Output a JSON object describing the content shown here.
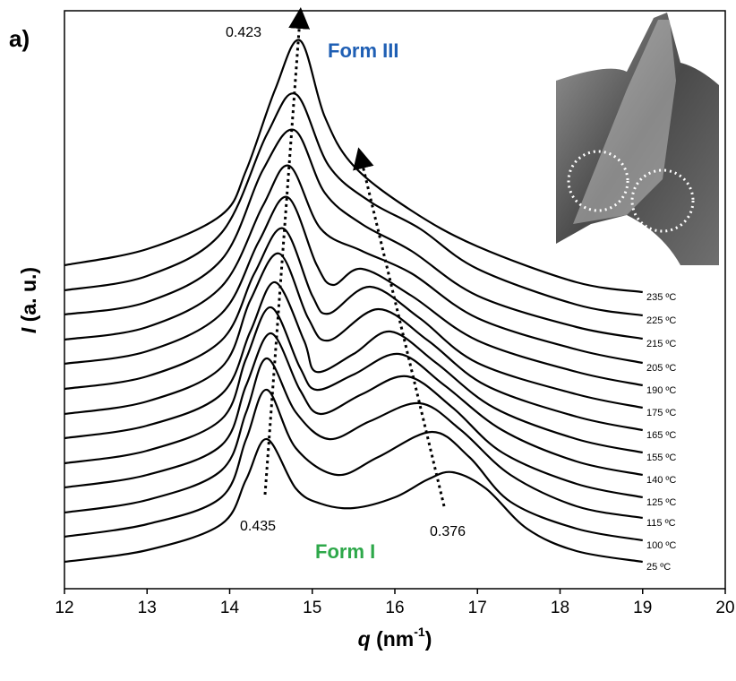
{
  "chart_data": {
    "type": "line",
    "panel_label": "a)",
    "x_label_symbol": "q",
    "x_label_unit": "(nm",
    "x_label_exp": "-1",
    "x_label_close": ")",
    "y_label_symbol": "I",
    "y_label_unit": "(a. u.)",
    "xlim": [
      12,
      20
    ],
    "xticks": [
      12,
      13,
      14,
      15,
      16,
      17,
      18,
      19,
      20
    ],
    "ylim": [
      0,
      645
    ],
    "annotations": [
      "0.423",
      "0.435",
      "0.376"
    ],
    "form_labels": [
      {
        "text": "Form III",
        "color": "#1f5fb4"
      },
      {
        "text": "Form I",
        "color": "#2ea84a"
      }
    ],
    "series": [
      {
        "name": "25 ºC",
        "color": "#000000",
        "x": [
          12,
          13,
          13.9,
          14.2,
          14.45,
          14.8,
          15.1,
          15.5,
          16.0,
          16.4,
          16.7,
          17.1,
          17.6,
          18.2,
          19
        ],
        "values": [
          30,
          43,
          72,
          122,
          167,
          112,
          95,
          90,
          102,
          122,
          130,
          112,
          67,
          42,
          30
        ]
      },
      {
        "name": "100 ºC",
        "color": "#000000",
        "x": [
          12,
          13,
          13.9,
          14.2,
          14.45,
          14.8,
          15.3,
          15.8,
          16.45,
          16.9,
          17.4,
          18.2,
          19
        ],
        "values": [
          58,
          72,
          102,
          167,
          222,
          157,
          127,
          147,
          175,
          147,
          97,
          67,
          54
        ]
      },
      {
        "name": "115 ºC",
        "color": "#000000",
        "x": [
          12,
          13,
          13.9,
          14.2,
          14.45,
          14.8,
          15.2,
          15.7,
          16.3,
          16.8,
          17.4,
          18.2,
          19
        ],
        "values": [
          85,
          99,
          132,
          197,
          257,
          197,
          167,
          187,
          207,
          177,
          127,
          92,
          79
        ]
      },
      {
        "name": "125 ºC",
        "color": "#000000",
        "x": [
          12,
          13,
          13.9,
          14.2,
          14.5,
          14.85,
          15.1,
          15.6,
          16.15,
          16.7,
          17.3,
          18.2,
          19
        ],
        "values": [
          113,
          127,
          160,
          227,
          285,
          222,
          195,
          217,
          237,
          202,
          152,
          117,
          102
        ]
      },
      {
        "name": "140 ºC",
        "color": "#000000",
        "x": [
          12,
          13,
          13.9,
          14.2,
          14.5,
          14.85,
          15.05,
          15.5,
          16.05,
          16.6,
          17.3,
          18.2,
          19
        ],
        "values": [
          140,
          154,
          189,
          257,
          314,
          247,
          222,
          239,
          262,
          227,
          177,
          142,
          127
        ]
      },
      {
        "name": "155 ºC",
        "color": "#000000",
        "x": [
          12,
          13,
          13.9,
          14.25,
          14.55,
          14.9,
          15.05,
          15.5,
          15.95,
          16.5,
          17.2,
          18.2,
          19
        ],
        "values": [
          168,
          182,
          217,
          287,
          342,
          277,
          242,
          262,
          287,
          252,
          202,
          167,
          152
        ]
      },
      {
        "name": "165 ºC",
        "color": "#000000",
        "x": [
          12,
          13,
          13.9,
          14.25,
          14.6,
          14.95,
          15.2,
          15.8,
          16.4,
          17.1,
          18.2,
          19
        ],
        "values": [
          195,
          209,
          247,
          322,
          374,
          302,
          277,
          312,
          277,
          227,
          192,
          177
        ]
      },
      {
        "name": "175 ºC",
        "color": "#000000",
        "x": [
          12,
          13,
          13.9,
          14.3,
          14.65,
          15.0,
          15.2,
          15.7,
          16.3,
          17.0,
          18.2,
          19
        ],
        "values": [
          223,
          237,
          277,
          352,
          402,
          327,
          307,
          337,
          302,
          252,
          217,
          202
        ]
      },
      {
        "name": "190 ºC",
        "color": "#000000",
        "x": [
          12,
          13,
          13.9,
          14.35,
          14.7,
          15.05,
          15.25,
          15.6,
          16.2,
          17.0,
          18.2,
          19
        ],
        "values": [
          251,
          265,
          307,
          387,
          437,
          362,
          339,
          357,
          327,
          277,
          242,
          227
        ]
      },
      {
        "name": "205 ºC",
        "color": "#000000",
        "x": [
          12,
          13,
          13.9,
          14.4,
          14.72,
          15.1,
          15.6,
          16.2,
          17.0,
          18.2,
          19
        ],
        "values": [
          278,
          292,
          337,
          427,
          472,
          402,
          377,
          352,
          302,
          267,
          252
        ]
      },
      {
        "name": "215 ºC",
        "color": "#000000",
        "x": [
          12,
          13,
          13.9,
          14.4,
          14.78,
          15.15,
          15.6,
          16.2,
          17.0,
          18.2,
          19
        ],
        "values": [
          306,
          320,
          367,
          467,
          512,
          442,
          407,
          377,
          327,
          292,
          279
        ]
      },
      {
        "name": "225 ºC",
        "color": "#000000",
        "x": [
          12,
          13,
          13.9,
          14.45,
          14.8,
          15.2,
          15.7,
          16.3,
          17.0,
          18.2,
          19
        ],
        "values": [
          333,
          349,
          397,
          507,
          552,
          472,
          432,
          402,
          357,
          317,
          305
        ]
      },
      {
        "name": "235 ºC",
        "color": "#000000",
        "x": [
          12,
          13,
          13.9,
          14.2,
          14.55,
          14.85,
          15.15,
          15.5,
          16.2,
          17.0,
          18.2,
          19
        ],
        "values": [
          361,
          379,
          417,
          467,
          557,
          612,
          527,
          472,
          422,
          382,
          342,
          331
        ]
      }
    ]
  }
}
